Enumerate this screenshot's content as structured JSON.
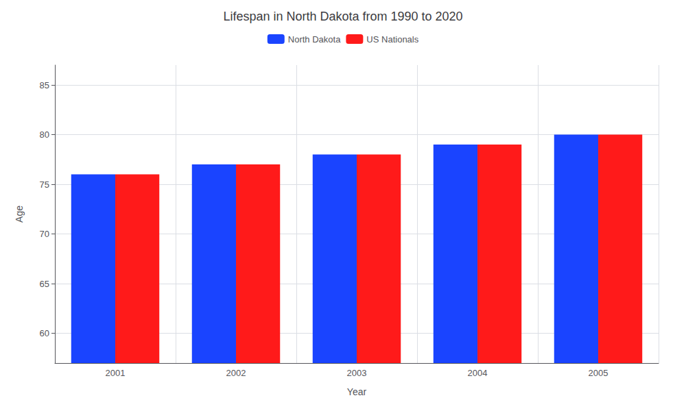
{
  "chart_data": {
    "type": "bar",
    "title": "Lifespan in North Dakota from 1990 to 2020",
    "xlabel": "Year",
    "ylabel": "Age",
    "categories": [
      "2001",
      "2002",
      "2003",
      "2004",
      "2005"
    ],
    "series": [
      {
        "name": "North Dakota",
        "color": "#1a44ff",
        "values": [
          76,
          77,
          78,
          79,
          80
        ]
      },
      {
        "name": "US Nationals",
        "color": "#ff1a1a",
        "values": [
          76,
          77,
          78,
          79,
          80
        ]
      }
    ],
    "ylim": [
      57,
      87
    ],
    "yticks": [
      60,
      65,
      70,
      75,
      80,
      85
    ],
    "grid": true,
    "legend": "top"
  }
}
